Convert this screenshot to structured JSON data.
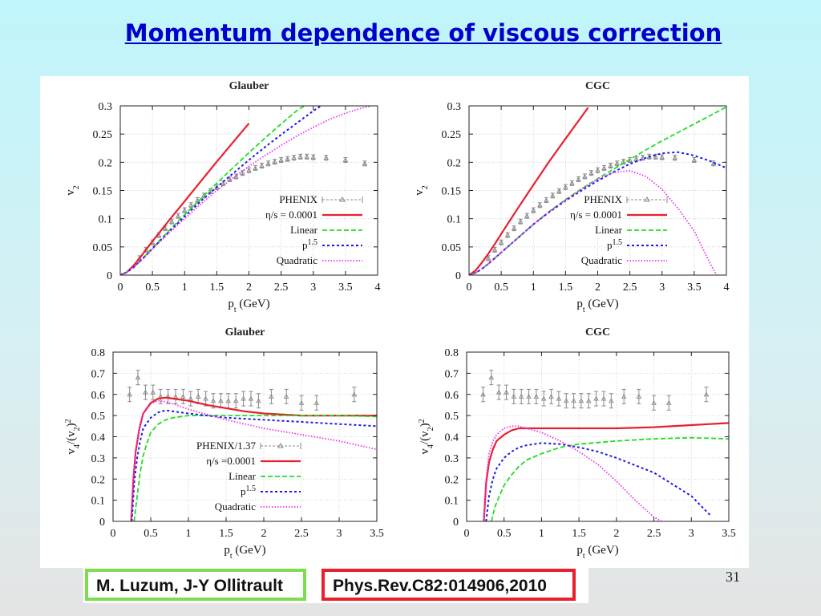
{
  "slide": {
    "title": "Momentum dependence of viscous correction",
    "authors": "M. Luzum, J-Y Ollitrault",
    "reference": "Phys.Rev.C82:014906,2010",
    "page_number": "31"
  },
  "colors": {
    "ideal": "#e8202e",
    "linear": "#22dd22",
    "p15": "#1a1aee",
    "quadratic": "#ee33ee",
    "data": "#888888"
  },
  "chart_data": [
    {
      "type": "line",
      "title": "Glauber",
      "xlabel": "p_t (GeV)",
      "ylabel": "v_2",
      "xlim": [
        0,
        4
      ],
      "ylim": [
        0,
        0.3
      ],
      "xticks": [
        "0",
        "0.5",
        "1",
        "1.5",
        "2",
        "2.5",
        "3",
        "3.5",
        "4"
      ],
      "yticks": [
        "0",
        "0.05",
        "0.1",
        "0.15",
        "0.2",
        "0.25",
        "0.3"
      ],
      "legend_position": "bottom-right",
      "grid": true,
      "series": [
        {
          "name": "PHENIX",
          "style": "data",
          "color_key": "data",
          "x": [
            0.3,
            0.4,
            0.5,
            0.6,
            0.7,
            0.8,
            0.9,
            1.0,
            1.1,
            1.2,
            1.3,
            1.4,
            1.5,
            1.6,
            1.7,
            1.8,
            1.9,
            2.0,
            2.1,
            2.2,
            2.3,
            2.4,
            2.5,
            2.6,
            2.7,
            2.8,
            2.9,
            3.0,
            3.2,
            3.5,
            3.8
          ],
          "y": [
            0.03,
            0.045,
            0.058,
            0.071,
            0.083,
            0.095,
            0.105,
            0.115,
            0.124,
            0.133,
            0.141,
            0.149,
            0.156,
            0.163,
            0.17,
            0.175,
            0.181,
            0.186,
            0.19,
            0.194,
            0.198,
            0.201,
            0.204,
            0.206,
            0.208,
            0.21,
            0.21,
            0.209,
            0.208,
            0.204,
            0.198
          ]
        },
        {
          "name": "η/s = 0.0001",
          "style": "solid",
          "color_key": "ideal",
          "x": [
            0,
            0.1,
            0.2,
            0.3,
            0.4,
            0.5,
            0.75,
            1.0,
            1.25,
            1.5,
            1.75,
            2.0
          ],
          "y": [
            0,
            0.005,
            0.016,
            0.03,
            0.045,
            0.06,
            0.096,
            0.131,
            0.166,
            0.201,
            0.235,
            0.269
          ]
        },
        {
          "name": "Linear",
          "style": "dash",
          "color_key": "linear",
          "x": [
            0,
            0.1,
            0.2,
            0.3,
            0.4,
            0.5,
            0.75,
            1.0,
            1.25,
            1.5,
            1.75,
            2.0,
            2.25,
            2.5,
            2.75,
            3.0
          ],
          "y": [
            0,
            0.005,
            0.013,
            0.024,
            0.036,
            0.048,
            0.078,
            0.107,
            0.135,
            0.163,
            0.19,
            0.217,
            0.243,
            0.268,
            0.292,
            0.31
          ]
        },
        {
          "name": "p^1.5",
          "style": "short-dash",
          "color_key": "p15",
          "x": [
            0,
            0.1,
            0.2,
            0.3,
            0.4,
            0.5,
            0.75,
            1.0,
            1.25,
            1.5,
            1.75,
            2.0,
            2.25,
            2.5,
            2.75,
            3.0,
            3.25
          ],
          "y": [
            0,
            0.005,
            0.013,
            0.024,
            0.035,
            0.047,
            0.076,
            0.104,
            0.131,
            0.156,
            0.18,
            0.204,
            0.227,
            0.249,
            0.27,
            0.291,
            0.31
          ]
        },
        {
          "name": "Quadratic",
          "style": "dot",
          "color_key": "quadratic",
          "x": [
            0,
            0.1,
            0.2,
            0.3,
            0.4,
            0.5,
            0.75,
            1.0,
            1.25,
            1.5,
            1.75,
            2.0,
            2.25,
            2.5,
            2.75,
            3.0,
            3.25,
            3.5,
            3.75,
            3.9
          ],
          "y": [
            0,
            0.005,
            0.013,
            0.023,
            0.034,
            0.046,
            0.074,
            0.1,
            0.126,
            0.15,
            0.172,
            0.193,
            0.212,
            0.23,
            0.247,
            0.262,
            0.276,
            0.287,
            0.296,
            0.3
          ]
        }
      ]
    },
    {
      "type": "line",
      "title": "CGC",
      "xlabel": "p_t (GeV)",
      "ylabel": "v_2",
      "xlim": [
        0,
        4
      ],
      "ylim": [
        0,
        0.3
      ],
      "xticks": [
        "0",
        "0.5",
        "1",
        "1.5",
        "2",
        "2.5",
        "3",
        "3.5",
        "4"
      ],
      "yticks": [
        "0",
        "0.05",
        "0.1",
        "0.15",
        "0.2",
        "0.25",
        "0.3"
      ],
      "legend_position": "bottom-right",
      "grid": true,
      "series": [
        {
          "name": "PHENIX",
          "style": "data",
          "color_key": "data",
          "x": [
            0.3,
            0.4,
            0.5,
            0.6,
            0.7,
            0.8,
            0.9,
            1.0,
            1.1,
            1.2,
            1.3,
            1.4,
            1.5,
            1.6,
            1.7,
            1.8,
            1.9,
            2.0,
            2.1,
            2.2,
            2.3,
            2.4,
            2.5,
            2.6,
            2.7,
            2.8,
            2.9,
            3.0,
            3.2,
            3.5,
            3.8
          ],
          "y": [
            0.03,
            0.045,
            0.058,
            0.071,
            0.083,
            0.095,
            0.105,
            0.115,
            0.124,
            0.133,
            0.141,
            0.149,
            0.156,
            0.163,
            0.17,
            0.175,
            0.181,
            0.186,
            0.19,
            0.194,
            0.198,
            0.201,
            0.204,
            0.206,
            0.208,
            0.21,
            0.21,
            0.209,
            0.208,
            0.204,
            0.198
          ]
        },
        {
          "name": "η/s = 0.0001",
          "style": "solid",
          "color_key": "ideal",
          "x": [
            0,
            0.1,
            0.2,
            0.3,
            0.4,
            0.5,
            0.75,
            1.0,
            1.25,
            1.5,
            1.75,
            1.85
          ],
          "y": [
            0,
            0.008,
            0.022,
            0.038,
            0.055,
            0.073,
            0.117,
            0.16,
            0.202,
            0.242,
            0.281,
            0.297
          ]
        },
        {
          "name": "Linear",
          "style": "dash",
          "color_key": "linear",
          "x": [
            0,
            0.1,
            0.2,
            0.3,
            0.4,
            0.5,
            0.75,
            1.0,
            1.25,
            1.5,
            1.75,
            2.0,
            2.25,
            2.5,
            2.75,
            3.0,
            3.25,
            3.5,
            3.75,
            4.0
          ],
          "y": [
            0,
            0.004,
            0.011,
            0.02,
            0.03,
            0.04,
            0.065,
            0.09,
            0.113,
            0.134,
            0.153,
            0.171,
            0.188,
            0.205,
            0.222,
            0.238,
            0.253,
            0.268,
            0.283,
            0.298
          ]
        },
        {
          "name": "p^1.5",
          "style": "short-dash",
          "color_key": "p15",
          "x": [
            0,
            0.1,
            0.2,
            0.3,
            0.4,
            0.5,
            0.75,
            1.0,
            1.25,
            1.5,
            1.75,
            2.0,
            2.25,
            2.5,
            2.75,
            3.0,
            3.25,
            3.5,
            3.75,
            4.0
          ],
          "y": [
            0,
            0.004,
            0.011,
            0.02,
            0.03,
            0.04,
            0.065,
            0.09,
            0.112,
            0.132,
            0.15,
            0.167,
            0.183,
            0.197,
            0.208,
            0.216,
            0.218,
            0.212,
            0.202,
            0.19
          ]
        },
        {
          "name": "Quadratic",
          "style": "dot",
          "color_key": "quadratic",
          "x": [
            0,
            0.1,
            0.2,
            0.3,
            0.4,
            0.5,
            0.75,
            1.0,
            1.25,
            1.5,
            1.75,
            2.0,
            2.25,
            2.5,
            2.75,
            3.0,
            3.25,
            3.5,
            3.75,
            3.85
          ],
          "y": [
            0,
            0.004,
            0.011,
            0.02,
            0.03,
            0.04,
            0.065,
            0.09,
            0.113,
            0.133,
            0.153,
            0.17,
            0.182,
            0.185,
            0.175,
            0.152,
            0.118,
            0.078,
            0.02,
            0.0
          ]
        }
      ]
    },
    {
      "type": "line",
      "title": "Glauber",
      "xlabel": "p_t (GeV)",
      "ylabel": "v_4/(v_2)^2",
      "xlim": [
        0,
        3.5
      ],
      "ylim": [
        0,
        0.8
      ],
      "xticks": [
        "0",
        "0.5",
        "1",
        "1.5",
        "2",
        "2.5",
        "3",
        "3.5"
      ],
      "yticks": [
        "0",
        "0.1",
        "0.2",
        "0.3",
        "0.4",
        "0.5",
        "0.6",
        "0.7",
        "0.8"
      ],
      "legend_position": "bottom-center",
      "grid": true,
      "series": [
        {
          "name": "PHENIX/1.37",
          "style": "data",
          "color_key": "data",
          "x": [
            0.22,
            0.33,
            0.43,
            0.53,
            0.63,
            0.73,
            0.83,
            0.93,
            1.03,
            1.13,
            1.23,
            1.33,
            1.43,
            1.53,
            1.63,
            1.73,
            1.83,
            1.93,
            2.1,
            2.3,
            2.5,
            2.7,
            3.2
          ],
          "y": [
            0.6,
            0.68,
            0.61,
            0.61,
            0.59,
            0.59,
            0.59,
            0.59,
            0.58,
            0.59,
            0.58,
            0.57,
            0.57,
            0.57,
            0.57,
            0.58,
            0.58,
            0.57,
            0.59,
            0.59,
            0.56,
            0.56,
            0.6
          ]
        },
        {
          "name": "η/s =0.0001",
          "style": "solid",
          "color_key": "ideal",
          "x": [
            0.24,
            0.27,
            0.3,
            0.35,
            0.4,
            0.5,
            0.6,
            0.7,
            0.8,
            1.0,
            1.25,
            1.5,
            1.75,
            2.0,
            2.5,
            3.0,
            3.5
          ],
          "y": [
            0.0,
            0.2,
            0.33,
            0.44,
            0.51,
            0.56,
            0.58,
            0.585,
            0.58,
            0.57,
            0.55,
            0.535,
            0.52,
            0.51,
            0.5,
            0.5,
            0.5
          ]
        },
        {
          "name": "Linear",
          "style": "dash",
          "color_key": "linear",
          "x": [
            0.28,
            0.32,
            0.36,
            0.4,
            0.45,
            0.5,
            0.6,
            0.7,
            0.8,
            1.0,
            1.25,
            1.5,
            2.0,
            2.5,
            3.0,
            3.5
          ],
          "y": [
            0.0,
            0.12,
            0.23,
            0.31,
            0.37,
            0.42,
            0.46,
            0.48,
            0.49,
            0.5,
            0.5,
            0.5,
            0.5,
            0.5,
            0.5,
            0.495
          ]
        },
        {
          "name": "p^1.5",
          "style": "short-dash",
          "color_key": "p15",
          "x": [
            0.25,
            0.28,
            0.32,
            0.36,
            0.4,
            0.5,
            0.6,
            0.7,
            0.8,
            1.0,
            1.25,
            1.5,
            2.0,
            2.5,
            3.0,
            3.5
          ],
          "y": [
            0.0,
            0.18,
            0.3,
            0.38,
            0.44,
            0.49,
            0.515,
            0.525,
            0.52,
            0.51,
            0.5,
            0.49,
            0.48,
            0.47,
            0.46,
            0.45
          ]
        },
        {
          "name": "Quadratic",
          "style": "dot",
          "color_key": "quadratic",
          "x": [
            0.24,
            0.27,
            0.3,
            0.35,
            0.4,
            0.5,
            0.6,
            0.7,
            0.8,
            1.0,
            1.25,
            1.5,
            2.0,
            2.5,
            3.0,
            3.5
          ],
          "y": [
            0.0,
            0.2,
            0.33,
            0.44,
            0.51,
            0.555,
            0.57,
            0.565,
            0.555,
            0.53,
            0.505,
            0.48,
            0.44,
            0.41,
            0.38,
            0.34
          ]
        }
      ]
    },
    {
      "type": "line",
      "title": "CGC",
      "xlabel": "p_t (GeV)",
      "ylabel": "v_4/(v_2)^2",
      "xlim": [
        0,
        3.5
      ],
      "ylim": [
        0,
        0.8
      ],
      "xticks": [
        "0",
        "0.5",
        "1",
        "1.5",
        "2",
        "2.5",
        "3",
        "3.5"
      ],
      "yticks": [
        "0",
        "0.1",
        "0.2",
        "0.3",
        "0.4",
        "0.5",
        "0.6",
        "0.7",
        "0.8"
      ],
      "legend_position": "none",
      "grid": true,
      "series": [
        {
          "name": "PHENIX/1.37",
          "style": "data",
          "color_key": "data",
          "x": [
            0.22,
            0.33,
            0.43,
            0.53,
            0.63,
            0.73,
            0.83,
            0.93,
            1.03,
            1.13,
            1.23,
            1.33,
            1.43,
            1.53,
            1.63,
            1.73,
            1.83,
            1.93,
            2.1,
            2.3,
            2.5,
            2.7,
            3.2
          ],
          "y": [
            0.6,
            0.68,
            0.61,
            0.61,
            0.59,
            0.59,
            0.59,
            0.59,
            0.58,
            0.59,
            0.58,
            0.57,
            0.57,
            0.57,
            0.57,
            0.58,
            0.58,
            0.57,
            0.59,
            0.59,
            0.56,
            0.56,
            0.6
          ]
        },
        {
          "name": "η/s =0.0001",
          "style": "solid",
          "color_key": "ideal",
          "x": [
            0.23,
            0.26,
            0.3,
            0.35,
            0.4,
            0.5,
            0.6,
            0.7,
            0.8,
            1.0,
            1.5,
            2.0,
            2.5,
            3.0,
            3.5
          ],
          "y": [
            0.0,
            0.18,
            0.28,
            0.34,
            0.38,
            0.41,
            0.43,
            0.44,
            0.44,
            0.44,
            0.44,
            0.44,
            0.445,
            0.455,
            0.465
          ]
        },
        {
          "name": "Linear",
          "style": "dash",
          "color_key": "linear",
          "x": [
            0.33,
            0.38,
            0.45,
            0.5,
            0.6,
            0.7,
            0.8,
            1.0,
            1.25,
            1.5,
            2.0,
            2.5,
            3.0,
            3.5
          ],
          "y": [
            0.0,
            0.07,
            0.13,
            0.17,
            0.22,
            0.26,
            0.29,
            0.32,
            0.35,
            0.365,
            0.38,
            0.39,
            0.395,
            0.39
          ]
        },
        {
          "name": "p^1.5",
          "style": "short-dash",
          "color_key": "p15",
          "x": [
            0.26,
            0.3,
            0.35,
            0.4,
            0.5,
            0.6,
            0.7,
            0.8,
            1.0,
            1.25,
            1.5,
            1.75,
            2.0,
            2.5,
            3.0,
            3.25
          ],
          "y": [
            0.0,
            0.12,
            0.2,
            0.25,
            0.3,
            0.33,
            0.35,
            0.36,
            0.37,
            0.365,
            0.35,
            0.33,
            0.3,
            0.23,
            0.12,
            0.03
          ]
        },
        {
          "name": "Quadratic",
          "style": "dot",
          "color_key": "quadratic",
          "x": [
            0.23,
            0.26,
            0.3,
            0.35,
            0.4,
            0.5,
            0.6,
            0.7,
            0.8,
            1.0,
            1.25,
            1.5,
            1.75,
            2.0,
            2.25,
            2.5,
            2.6
          ],
          "y": [
            0.0,
            0.2,
            0.32,
            0.38,
            0.41,
            0.44,
            0.45,
            0.45,
            0.44,
            0.42,
            0.38,
            0.33,
            0.27,
            0.19,
            0.1,
            0.02,
            0.0
          ]
        }
      ]
    }
  ]
}
